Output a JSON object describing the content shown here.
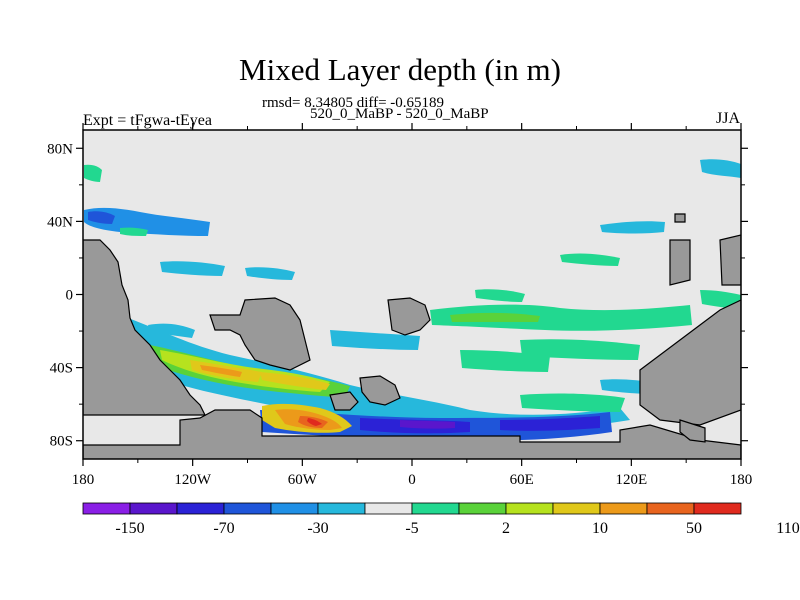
{
  "title": "Mixed Layer depth (in m)",
  "stats_line": "rmsd= 8.34805 diff= -0.65189",
  "runs_line": "520_0_MaBP - 520_0_MaBP",
  "expt_label": "Expt = tFgwa-tEyea",
  "season": "JJA",
  "map": {
    "lat_ticks": [
      {
        "lat": 80,
        "label": "80N"
      },
      {
        "lat": 40,
        "label": "40N"
      },
      {
        "lat": 0,
        "label": "0"
      },
      {
        "lat": -40,
        "label": "40S"
      },
      {
        "lat": -80,
        "label": "80S"
      }
    ],
    "lon_ticks": [
      {
        "lon": -180,
        "label": "180"
      },
      {
        "lon": -120,
        "label": "120W"
      },
      {
        "lon": -60,
        "label": "60W"
      },
      {
        "lon": 0,
        "label": "0"
      },
      {
        "lon": 60,
        "label": "60E"
      },
      {
        "lon": 120,
        "label": "120E"
      },
      {
        "lon": 180,
        "label": "180"
      }
    ],
    "colors": {
      "land": "#999999",
      "ocean_neutral": "#e8e8e8",
      "frame": "#000000"
    }
  },
  "colorbar": {
    "colors": [
      "#8a1fe6",
      "#5a16cc",
      "#2b22d6",
      "#1f55d9",
      "#2090e6",
      "#26b8dc",
      "#e8e8e8",
      "#22d890",
      "#5ad23a",
      "#b6e21e",
      "#e0c81a",
      "#ec9a1a",
      "#e8641e",
      "#e02a1e"
    ],
    "labels": [
      {
        "boundary": 1,
        "text": "-150"
      },
      {
        "boundary": 3,
        "text": "-70"
      },
      {
        "boundary": 5,
        "text": "-30"
      },
      {
        "boundary": 7,
        "text": "-5"
      },
      {
        "boundary": 9,
        "text": "2"
      },
      {
        "boundary": 11,
        "text": "10"
      },
      {
        "boundary": 13,
        "text": "50"
      },
      {
        "boundary": 15,
        "text": "110"
      }
    ]
  }
}
